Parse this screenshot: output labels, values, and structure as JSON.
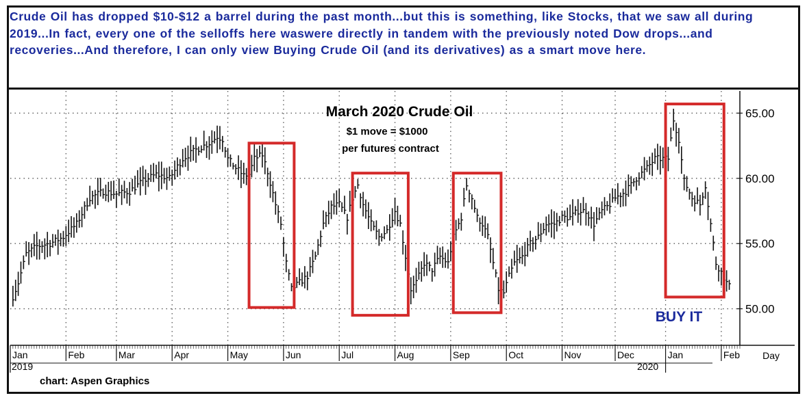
{
  "annotation_text": "Crude Oil has dropped $10-$12 a barrel during the past month...but this is something, like Stocks, that we saw all during 2019...In fact, every one of the selloffs here waswere directly in tandem with the previously noted Dow drops...and recoveries...And therefore, I can only view Buying Crude Oil (and its derivatives) as a smart move here.",
  "credit": "chart: Aspen Graphics",
  "colors": {
    "text_blue": "#1a2a9c",
    "box_red": "#d42a2a",
    "bars": "#111111",
    "grid": "#555555"
  },
  "chart_data": {
    "type": "bar",
    "title": "March 2020 Crude Oil",
    "subtitle_lines": [
      "$1 move = $1000",
      "per futures contract"
    ],
    "x_axis_label": "Day",
    "x_tick_labels": [
      "Jan",
      "Feb",
      "Mar",
      "Apr",
      "May",
      "Jun",
      "Jul",
      "Aug",
      "Sep",
      "Oct",
      "Nov",
      "Dec",
      "Jan",
      "Feb"
    ],
    "year_labels": [
      "2019",
      "2020"
    ],
    "y_tick_labels": [
      "65.00",
      "60.00",
      "55.00",
      "50.00"
    ],
    "y_ticks": [
      65,
      60,
      55,
      50
    ],
    "ylim": [
      47.2,
      66.7
    ],
    "grid": true,
    "buy_label": "BUY IT",
    "x_unit": "trading day index (0 = first day of Jan 2019)",
    "month_start_index": [
      0,
      21,
      40,
      61,
      82,
      103,
      124,
      145,
      166,
      187,
      208,
      228,
      247,
      268
    ],
    "x_max": 275,
    "highlight_boxes": [
      {
        "start_index": 90,
        "end_index": 107,
        "low": 50.1,
        "high": 62.7
      },
      {
        "start_index": 129,
        "end_index": 150,
        "low": 49.5,
        "high": 60.4
      },
      {
        "start_index": 167,
        "end_index": 185,
        "low": 49.7,
        "high": 60.4
      },
      {
        "start_index": 247,
        "end_index": 269,
        "low": 50.9,
        "high": 65.7
      }
    ],
    "close_anchors": [
      [
        0,
        50.4
      ],
      [
        3,
        52.0
      ],
      [
        6,
        54.2
      ],
      [
        10,
        54.8
      ],
      [
        15,
        55.0
      ],
      [
        20,
        55.5
      ],
      [
        25,
        56.5
      ],
      [
        30,
        58.5
      ],
      [
        35,
        59.0
      ],
      [
        40,
        58.8
      ],
      [
        45,
        59.0
      ],
      [
        50,
        59.8
      ],
      [
        55,
        60.3
      ],
      [
        60,
        60.0
      ],
      [
        65,
        61.5
      ],
      [
        70,
        62.2
      ],
      [
        75,
        62.7
      ],
      [
        78,
        63.2
      ],
      [
        80,
        63.0
      ],
      [
        82,
        61.5
      ],
      [
        85,
        60.8
      ],
      [
        88,
        60.2
      ],
      [
        90,
        60.3
      ],
      [
        92,
        61.5
      ],
      [
        95,
        61.8
      ],
      [
        97,
        60.5
      ],
      [
        100,
        58.0
      ],
      [
        102,
        56.5
      ],
      [
        104,
        53.5
      ],
      [
        106,
        51.5
      ],
      [
        109,
        52.0
      ],
      [
        112,
        52.5
      ],
      [
        115,
        54.0
      ],
      [
        118,
        56.5
      ],
      [
        121,
        57.8
      ],
      [
        124,
        58.0
      ],
      [
        127,
        57.0
      ],
      [
        129,
        58.5
      ],
      [
        131,
        59.5
      ],
      [
        133,
        58.0
      ],
      [
        136,
        56.5
      ],
      [
        139,
        55.5
      ],
      [
        142,
        56.0
      ],
      [
        145,
        57.5
      ],
      [
        147,
        56.5
      ],
      [
        149,
        54.0
      ],
      [
        151,
        51.5
      ],
      [
        153,
        52.0
      ],
      [
        156,
        53.5
      ],
      [
        159,
        53.0
      ],
      [
        162,
        54.0
      ],
      [
        165,
        53.5
      ],
      [
        167,
        55.5
      ],
      [
        170,
        57.0
      ],
      [
        172,
        59.5
      ],
      [
        174,
        58.5
      ],
      [
        176,
        57.0
      ],
      [
        178,
        56.5
      ],
      [
        180,
        55.5
      ],
      [
        182,
        53.5
      ],
      [
        184,
        51.5
      ],
      [
        186,
        51.2
      ],
      [
        188,
        52.5
      ],
      [
        190,
        53.5
      ],
      [
        193,
        54.0
      ],
      [
        196,
        55.0
      ],
      [
        199,
        55.5
      ],
      [
        202,
        56.5
      ],
      [
        205,
        56.5
      ],
      [
        208,
        57.0
      ],
      [
        211,
        57.0
      ],
      [
        214,
        57.5
      ],
      [
        217,
        57.5
      ],
      [
        220,
        56.5
      ],
      [
        223,
        57.5
      ],
      [
        226,
        58.0
      ],
      [
        228,
        58.5
      ],
      [
        232,
        59.0
      ],
      [
        236,
        60.0
      ],
      [
        240,
        60.8
      ],
      [
        243,
        61.5
      ],
      [
        246,
        61.5
      ],
      [
        248,
        61.5
      ],
      [
        250,
        64.5
      ],
      [
        252,
        63.0
      ],
      [
        254,
        59.8
      ],
      [
        257,
        58.5
      ],
      [
        260,
        58.0
      ],
      [
        262,
        59.5
      ],
      [
        264,
        56.5
      ],
      [
        266,
        53.5
      ],
      [
        268,
        52.8
      ],
      [
        270,
        52.0
      ],
      [
        271,
        51.7
      ]
    ]
  }
}
